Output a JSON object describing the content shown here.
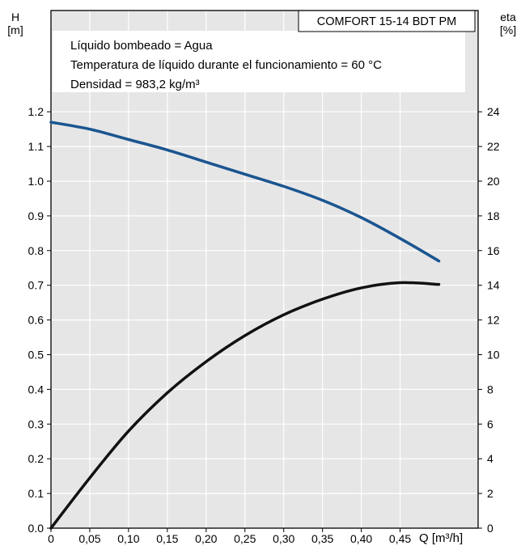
{
  "chart_data": {
    "type": "line",
    "model_label": "COMFORT 15-14 BDT PM",
    "info_lines": [
      "Líquido bombeado = Agua",
      "Temperatura de líquido durante el funcionamiento = 60 °C",
      "Densidad = 983,2 kg/m³"
    ],
    "y_left_label": [
      "H",
      "[m]"
    ],
    "y_right_label": [
      "eta",
      "[%]"
    ],
    "x_label": "Q [m³/h]",
    "xlim": [
      0,
      0.5
    ],
    "ylim_left": [
      0,
      1.25
    ],
    "ylim_right": [
      0,
      25
    ],
    "x_ticks": [
      "0",
      "0,05",
      "0,10",
      "0,15",
      "0,20",
      "0,25",
      "0,30",
      "0,35",
      "0,40",
      "0,45"
    ],
    "y_left_ticks": [
      "0.0",
      "0.1",
      "0.2",
      "0.3",
      "0.4",
      "0.5",
      "0.6",
      "0.7",
      "0.8",
      "0.9",
      "1.0",
      "1.1",
      "1.2"
    ],
    "y_right_ticks": [
      "0",
      "2",
      "4",
      "6",
      "8",
      "10",
      "12",
      "14",
      "16",
      "18",
      "20",
      "22",
      "24"
    ],
    "grid": true,
    "series": [
      {
        "axis": "left",
        "color": "#1a5590",
        "x": [
          0,
          0.05,
          0.1,
          0.15,
          0.2,
          0.25,
          0.3,
          0.35,
          0.4,
          0.45,
          0.5
        ],
        "y": [
          1.17,
          1.15,
          1.12,
          1.09,
          1.055,
          1.02,
          0.985,
          0.945,
          0.895,
          0.835,
          0.77
        ]
      },
      {
        "axis": "right",
        "color": "#111111",
        "x": [
          0,
          0.05,
          0.1,
          0.15,
          0.2,
          0.25,
          0.3,
          0.35,
          0.4,
          0.45,
          0.5
        ],
        "y": [
          0,
          2.9,
          5.6,
          7.8,
          9.6,
          11.1,
          12.3,
          13.2,
          13.85,
          14.15,
          14.05
        ]
      }
    ]
  }
}
